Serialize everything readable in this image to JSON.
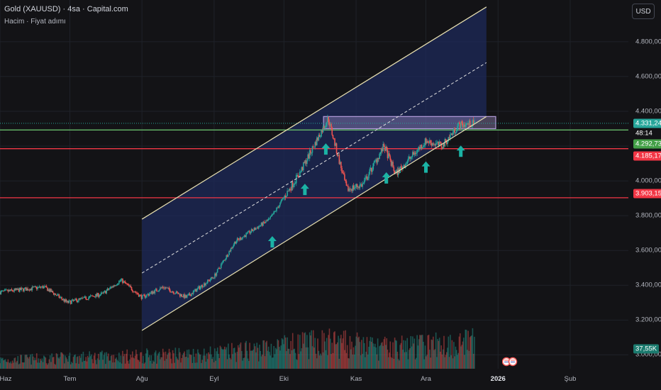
{
  "header": {
    "title": "Gold (XAUUSD) · 4sa · Capital.com",
    "subtitle": "Hacim · Fiyat adımı",
    "currency_button": "USD"
  },
  "colors": {
    "background": "#131316",
    "channel_fill": "#1e2a5a",
    "up_candle": "#26a69a",
    "down_candle": "#ef5350",
    "resistance_zone": "#b39ddb",
    "support_green": "#66bb6a",
    "support_red": "#f23645",
    "arrow": "#1bb3a5"
  },
  "badges": {
    "price": "4.331,24",
    "countdown": "48:14",
    "green_level": "4.292,73",
    "red_level_1": "4.185,17",
    "red_level_2": "3.903,15",
    "volume": "37,55K"
  },
  "chart_data": {
    "type": "candlestick",
    "title": "Gold (XAUUSD) · 4sa · Capital.com",
    "y_ticks": [
      "4.800,00",
      "4.600,00",
      "4.400,00",
      "4.200,00",
      "4.000,00",
      "3.800,00",
      "3.600,00",
      "3.400,00",
      "3.200,00",
      "3.000,00"
    ],
    "y_tick_values": [
      4800,
      4600,
      4400,
      4200,
      4000,
      3800,
      3600,
      3400,
      3200,
      3000
    ],
    "ylim": [
      2920,
      5040
    ],
    "x_ticks": [
      "Haz",
      "Tem",
      "Ağu",
      "Eyl",
      "Eki",
      "Kas",
      "Ara",
      "2026",
      "Şub"
    ],
    "x_tick_dates": [
      "2025-06-01",
      "2025-07-01",
      "2025-08-01",
      "2025-09-01",
      "2025-10-01",
      "2025-11-01",
      "2025-12-01",
      "2026-01-01",
      "2026-02-01"
    ],
    "xlim": [
      "2025-06-01",
      "2026-02-26"
    ],
    "price_path": [
      [
        "2025-06-01",
        3360
      ],
      [
        "2025-06-20",
        3390
      ],
      [
        "2025-06-30",
        3300
      ],
      [
        "2025-07-15",
        3350
      ],
      [
        "2025-07-23",
        3430
      ],
      [
        "2025-08-01",
        3330
      ],
      [
        "2025-08-10",
        3390
      ],
      [
        "2025-08-20",
        3330
      ],
      [
        "2025-09-01",
        3450
      ],
      [
        "2025-09-10",
        3650
      ],
      [
        "2025-09-25",
        3780
      ],
      [
        "2025-10-08",
        4050
      ],
      [
        "2025-10-20",
        4360
      ],
      [
        "2025-10-28",
        3950
      ],
      [
        "2025-11-04",
        3980
      ],
      [
        "2025-11-13",
        4200
      ],
      [
        "2025-11-18",
        4040
      ],
      [
        "2025-12-01",
        4230
      ],
      [
        "2025-12-08",
        4200
      ],
      [
        "2025-12-15",
        4320
      ],
      [
        "2025-12-22",
        4331.24
      ]
    ],
    "volume_path": [
      [
        "2025-06-01",
        3
      ],
      [
        "2025-07-15",
        4
      ],
      [
        "2025-09-01",
        5
      ],
      [
        "2025-10-20",
        9
      ],
      [
        "2025-11-13",
        7
      ],
      [
        "2025-12-22",
        9
      ]
    ],
    "channel": {
      "start": "2025-08-01",
      "end": "2025-12-27",
      "upper_start": 3780,
      "upper_end": 5000,
      "middle_start": 3470,
      "middle_end": 4680,
      "lower_start": 3140,
      "lower_end": 4370
    },
    "resistance_zone": {
      "start": "2025-10-18",
      "end": "2025-12-31",
      "low": 4300,
      "high": 4370
    },
    "horizontal_levels": [
      {
        "value": 4331.24,
        "color": "#26a69a",
        "style": "dotted"
      },
      {
        "value": 4292.73,
        "color": "#66bb6a",
        "style": "solid"
      },
      {
        "value": 4185.17,
        "color": "#f23645",
        "style": "solid"
      },
      {
        "value": 3903.15,
        "color": "#f23645",
        "style": "solid"
      }
    ],
    "up_arrows": [
      "2025-09-26",
      "2025-10-10",
      "2025-10-19",
      "2025-11-14",
      "2025-12-01",
      "2025-12-16"
    ],
    "grid": true,
    "legend": "none"
  }
}
